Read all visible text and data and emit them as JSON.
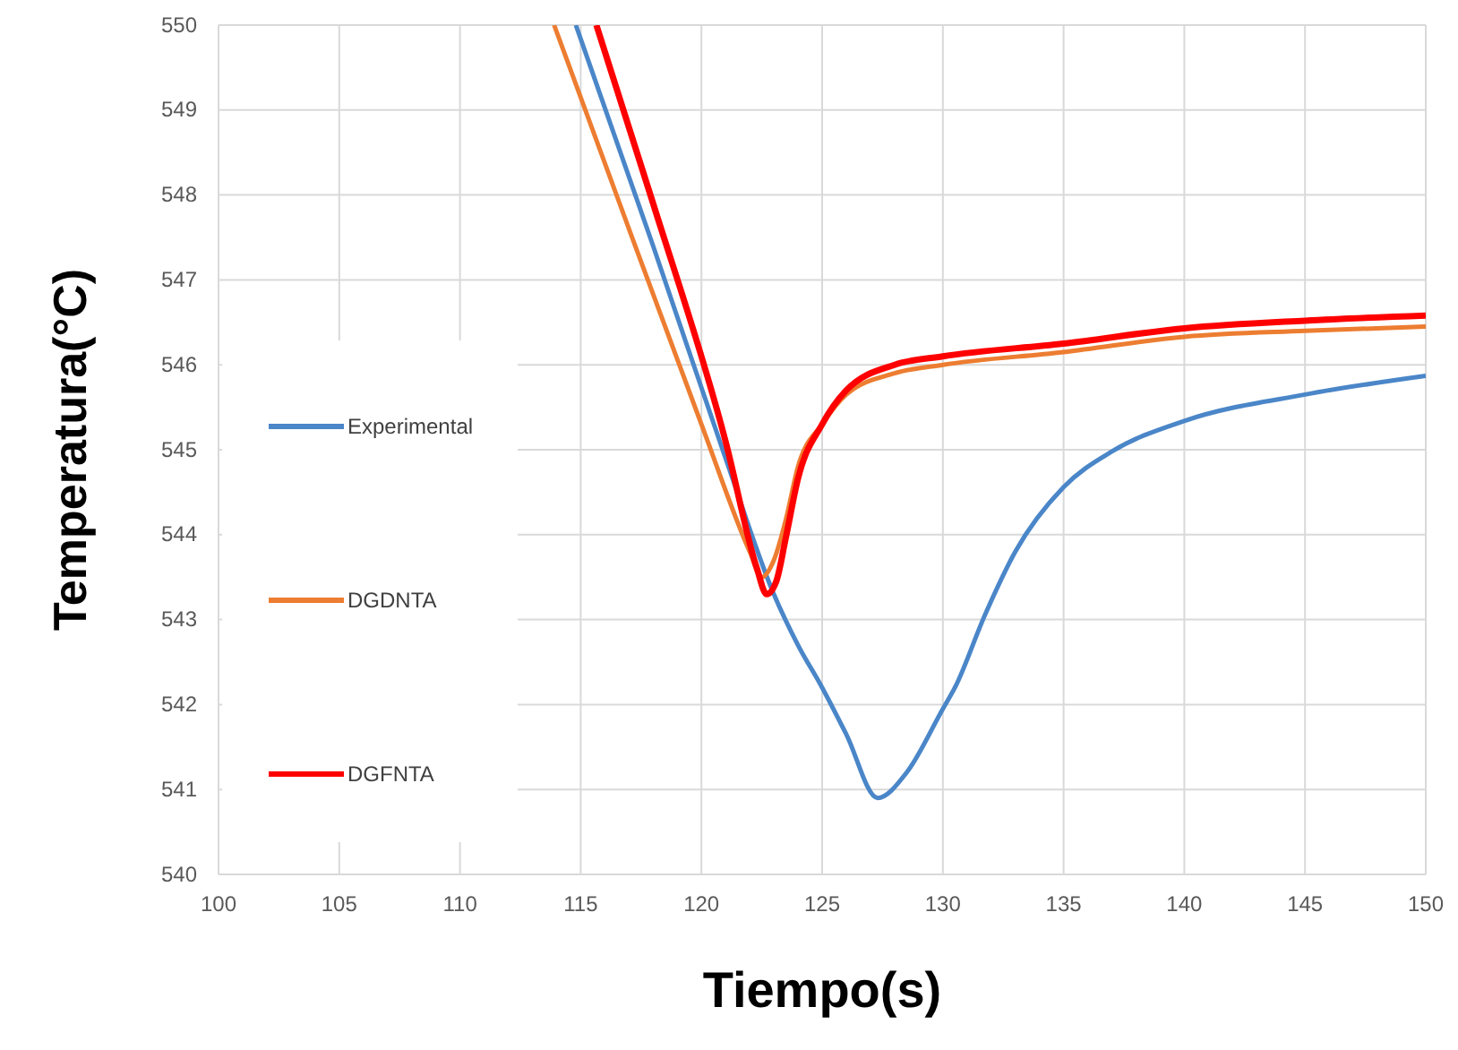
{
  "chart_data": {
    "type": "line",
    "xlabel": "Tiempo(s)",
    "ylabel": "Temperatura(°C)",
    "xlim": [
      100,
      150
    ],
    "xticks": [
      100,
      105,
      110,
      115,
      120,
      125,
      130,
      135,
      140,
      145,
      150
    ],
    "ylim": [
      540,
      550
    ],
    "yticks": [
      540,
      541,
      542,
      543,
      544,
      545,
      546,
      547,
      548,
      549,
      550
    ],
    "grid": true,
    "legend": "left",
    "marker": "none",
    "line_style": "solid",
    "series": [
      {
        "name": "Experimental",
        "color": "#4a86c8",
        "x": [
          114.8,
          118,
          121,
          123,
          124,
          125,
          126,
          127.3,
          128.5,
          130,
          130.5,
          131.75,
          133,
          135,
          137,
          140,
          145,
          150
        ],
        "values": [
          550,
          547.4,
          544.9,
          543.3,
          542.7,
          542.2,
          541.65,
          540.9,
          541.2,
          541.95,
          542.2,
          543.06,
          543.8,
          544.56,
          544.98,
          545.34,
          545.65,
          545.87
        ]
      },
      {
        "name": "DGDNTA",
        "color": "#ed7d31",
        "x": [
          113.9,
          117,
          120,
          122,
          122.5,
          123,
          123.5,
          124,
          125,
          126,
          128,
          130,
          135,
          140,
          145,
          150
        ],
        "values": [
          550,
          547.6,
          545.3,
          543.8,
          543.5,
          543.7,
          544.18,
          544.8,
          545.3,
          545.65,
          545.9,
          546.0,
          546.15,
          546.33,
          546.4,
          546.45
        ]
      },
      {
        "name": "DGFNTA",
        "color": "#ff0000",
        "x": [
          115.65,
          118,
          121,
          122.3,
          122.7,
          123.1,
          123.5,
          124,
          125,
          126,
          128,
          130,
          135,
          140,
          145,
          150
        ],
        "values": [
          550,
          547.9,
          545.1,
          543.6,
          543.3,
          543.45,
          543.97,
          544.66,
          545.3,
          545.7,
          546.0,
          546.1,
          546.25,
          546.43,
          546.52,
          546.58
        ]
      }
    ]
  }
}
